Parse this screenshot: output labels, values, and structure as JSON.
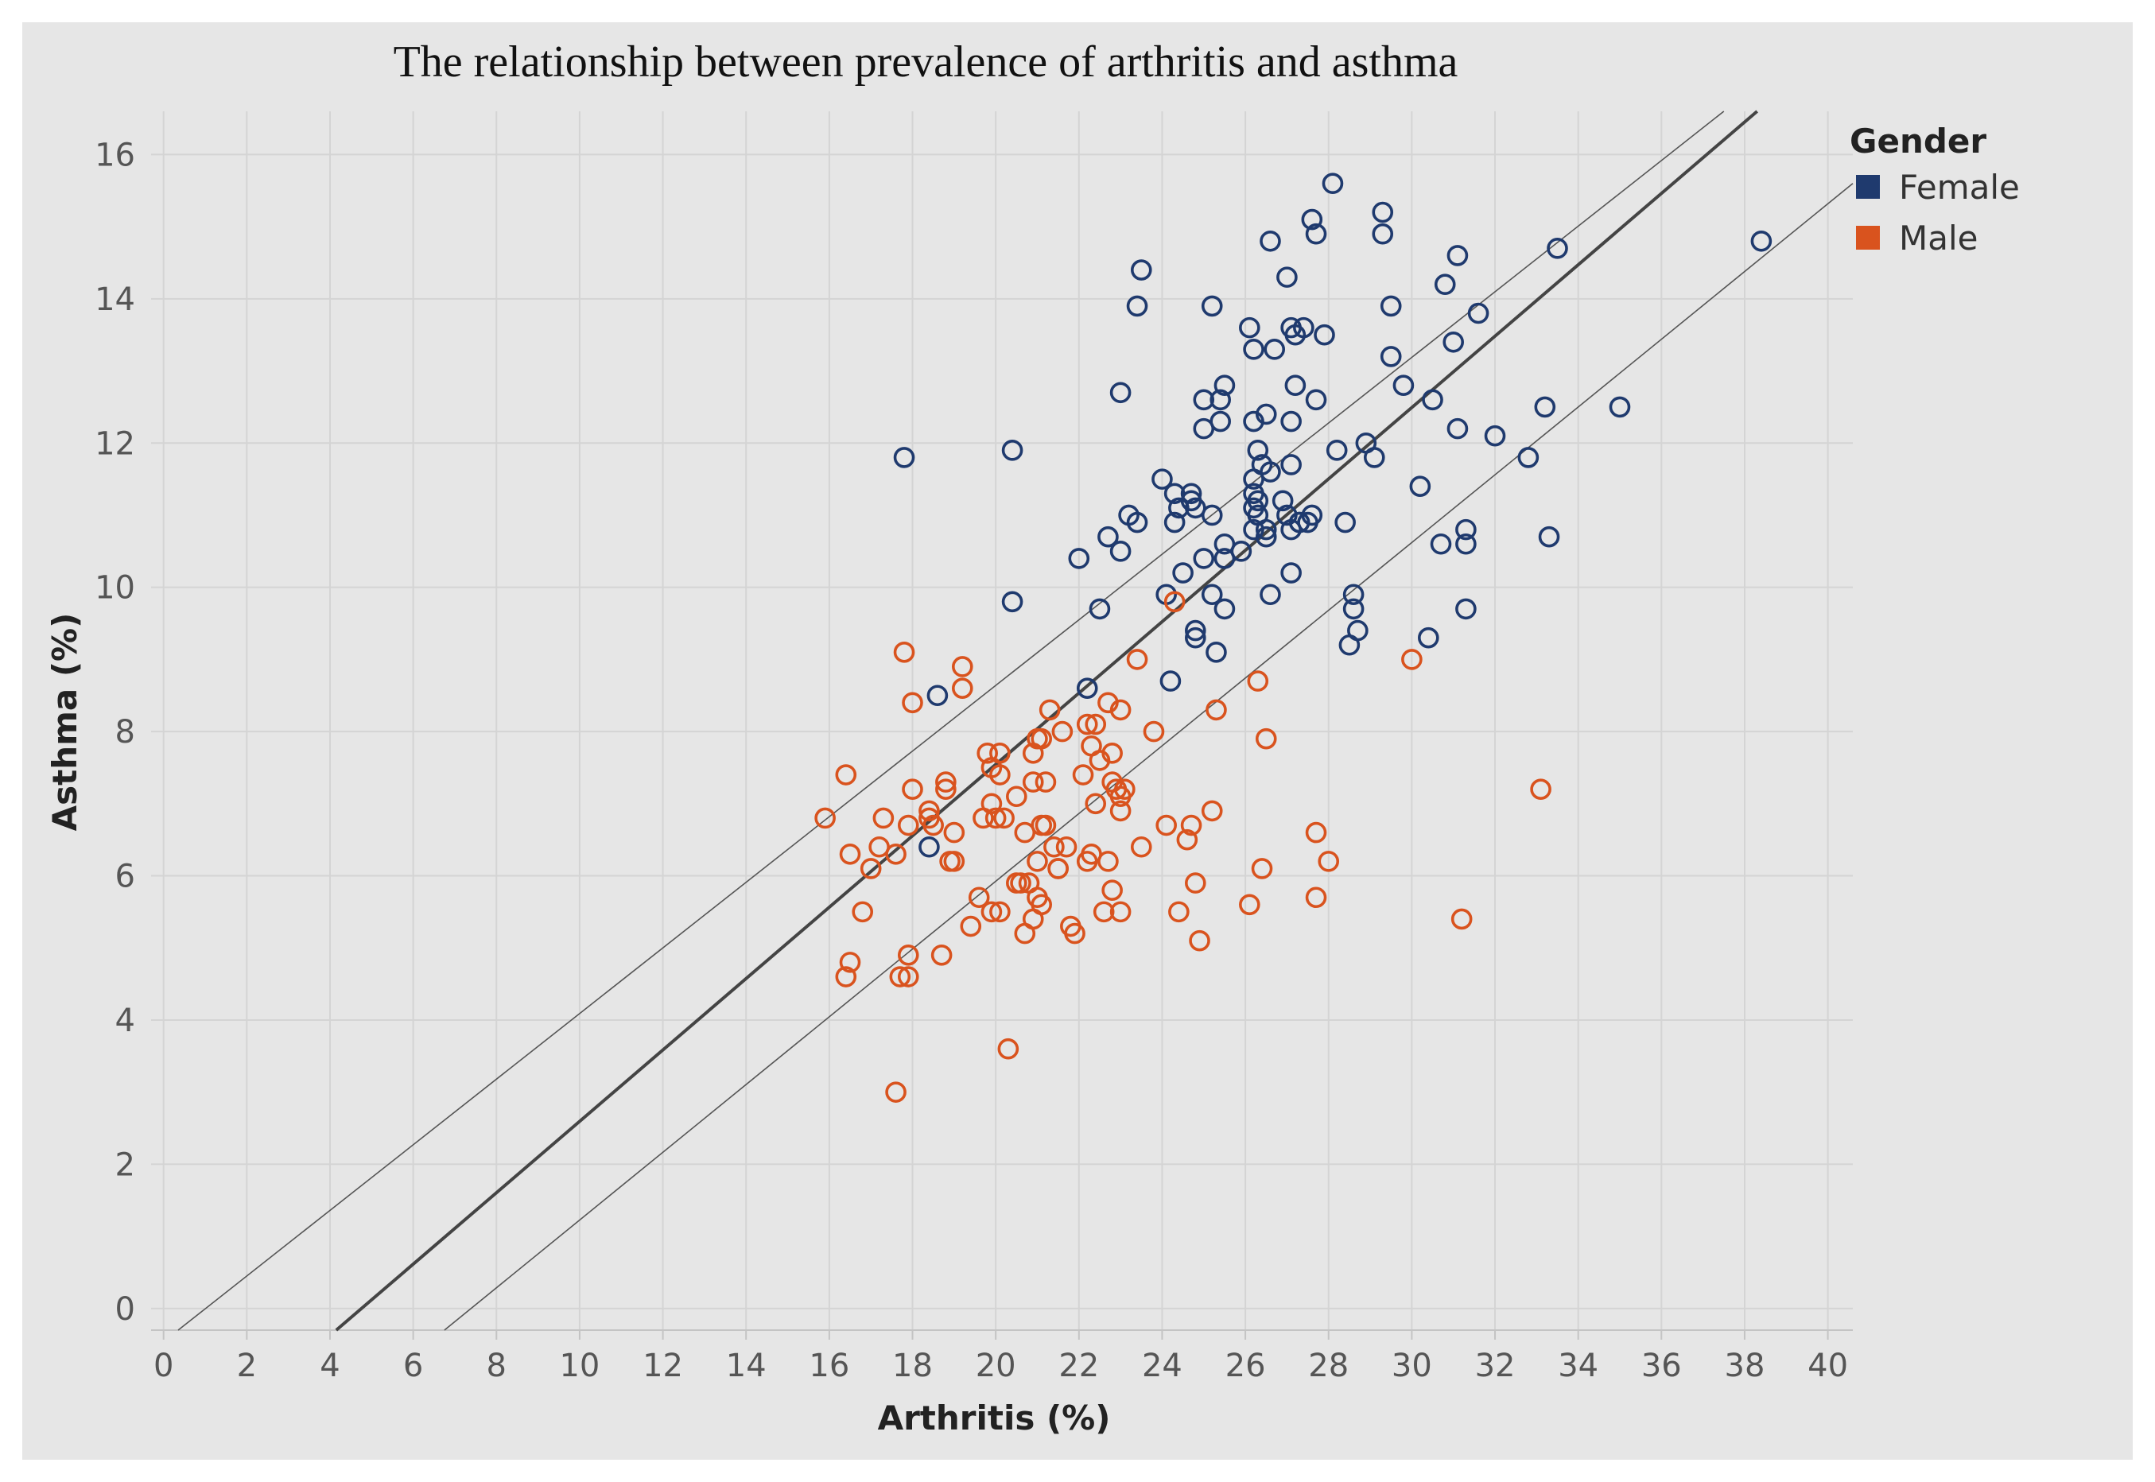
{
  "chart_data": {
    "type": "scatter",
    "title": "The relationship between prevalence of arthritis and asthma",
    "xlabel": "Arthritis (%)",
    "ylabel": "Asthma (%)",
    "xlim": [
      -0.3,
      40.6
    ],
    "ylim": [
      -0.3,
      16.6
    ],
    "x_ticks": [
      0,
      2,
      4,
      6,
      8,
      10,
      12,
      14,
      16,
      18,
      20,
      22,
      24,
      26,
      28,
      30,
      32,
      34,
      36,
      38,
      40
    ],
    "y_ticks": [
      0,
      2,
      4,
      6,
      8,
      10,
      12,
      14,
      16
    ],
    "grid": true,
    "legend": {
      "title": "Gender",
      "position": "top-right",
      "entries": [
        {
          "label": "Female",
          "color": "#1f3a6e"
        },
        {
          "label": "Male",
          "color": "#d9531e"
        }
      ]
    },
    "trend_line": {
      "name": "Trend",
      "x": [
        4.15,
        38.3
      ],
      "y": [
        -0.3,
        16.6
      ],
      "color": "#444444"
    },
    "confidence_bands": [
      {
        "name": "Upper band",
        "x": [
          0.35,
          37.5
        ],
        "y": [
          -0.3,
          16.6
        ],
        "color": "#555555"
      },
      {
        "name": "Lower band",
        "x": [
          6.75,
          40.6
        ],
        "y": [
          -0.3,
          15.6
        ],
        "color": "#555555"
      }
    ],
    "series": [
      {
        "name": "Female",
        "color": "#1f3a6e",
        "points": [
          [
            17.8,
            11.8
          ],
          [
            18.6,
            8.5
          ],
          [
            18.4,
            6.4
          ],
          [
            20.4,
            11.9
          ],
          [
            20.4,
            9.8
          ],
          [
            22.0,
            10.4
          ],
          [
            22.2,
            8.6
          ],
          [
            22.5,
            9.7
          ],
          [
            22.7,
            10.7
          ],
          [
            23.0,
            10.5
          ],
          [
            23.0,
            12.7
          ],
          [
            23.2,
            11.0
          ],
          [
            23.4,
            10.9
          ],
          [
            23.5,
            14.4
          ],
          [
            23.4,
            13.9
          ],
          [
            24.0,
            11.5
          ],
          [
            24.1,
            9.9
          ],
          [
            24.2,
            8.7
          ],
          [
            24.3,
            10.9
          ],
          [
            24.3,
            11.3
          ],
          [
            24.4,
            11.1
          ],
          [
            24.5,
            10.2
          ],
          [
            24.7,
            11.3
          ],
          [
            24.7,
            11.2
          ],
          [
            24.8,
            11.1
          ],
          [
            24.8,
            9.4
          ],
          [
            24.8,
            9.3
          ],
          [
            25.0,
            12.6
          ],
          [
            25.0,
            12.2
          ],
          [
            25.0,
            10.4
          ],
          [
            25.2,
            13.9
          ],
          [
            25.2,
            11.0
          ],
          [
            25.2,
            9.9
          ],
          [
            25.3,
            9.1
          ],
          [
            25.4,
            12.6
          ],
          [
            25.4,
            12.3
          ],
          [
            25.5,
            12.8
          ],
          [
            25.5,
            10.6
          ],
          [
            25.5,
            10.4
          ],
          [
            25.5,
            9.7
          ],
          [
            25.9,
            10.5
          ],
          [
            26.1,
            13.6
          ],
          [
            26.2,
            13.3
          ],
          [
            26.2,
            12.3
          ],
          [
            26.2,
            11.5
          ],
          [
            26.2,
            11.3
          ],
          [
            26.2,
            11.1
          ],
          [
            26.2,
            10.8
          ],
          [
            26.3,
            11.9
          ],
          [
            26.3,
            11.2
          ],
          [
            26.3,
            11.0
          ],
          [
            26.4,
            11.7
          ],
          [
            26.5,
            12.4
          ],
          [
            26.5,
            10.8
          ],
          [
            26.5,
            10.7
          ],
          [
            26.6,
            14.8
          ],
          [
            26.6,
            11.6
          ],
          [
            26.6,
            9.9
          ],
          [
            26.7,
            13.3
          ],
          [
            26.9,
            11.2
          ],
          [
            27.0,
            14.3
          ],
          [
            27.0,
            11.0
          ],
          [
            27.1,
            13.6
          ],
          [
            27.1,
            12.3
          ],
          [
            27.1,
            11.7
          ],
          [
            27.1,
            10.8
          ],
          [
            27.1,
            10.2
          ],
          [
            27.2,
            13.5
          ],
          [
            27.2,
            12.8
          ],
          [
            27.3,
            10.9
          ],
          [
            27.3,
            10.9
          ],
          [
            27.4,
            13.6
          ],
          [
            27.5,
            10.9
          ],
          [
            27.6,
            15.1
          ],
          [
            27.6,
            11.0
          ],
          [
            27.7,
            14.9
          ],
          [
            27.7,
            12.6
          ],
          [
            27.9,
            13.5
          ],
          [
            28.1,
            15.6
          ],
          [
            28.2,
            11.9
          ],
          [
            28.4,
            10.9
          ],
          [
            28.5,
            9.2
          ],
          [
            28.6,
            9.9
          ],
          [
            28.6,
            9.7
          ],
          [
            28.7,
            9.4
          ],
          [
            28.9,
            12.0
          ],
          [
            29.1,
            11.8
          ],
          [
            29.3,
            15.2
          ],
          [
            29.3,
            14.9
          ],
          [
            29.5,
            13.9
          ],
          [
            29.5,
            13.2
          ],
          [
            29.8,
            12.8
          ],
          [
            30.2,
            11.4
          ],
          [
            30.4,
            9.3
          ],
          [
            30.5,
            12.6
          ],
          [
            30.7,
            10.6
          ],
          [
            30.8,
            14.2
          ],
          [
            31.0,
            13.4
          ],
          [
            31.1,
            14.6
          ],
          [
            31.1,
            12.2
          ],
          [
            31.3,
            10.8
          ],
          [
            31.3,
            10.6
          ],
          [
            31.3,
            9.7
          ],
          [
            31.6,
            13.8
          ],
          [
            32.0,
            12.1
          ],
          [
            32.8,
            11.8
          ],
          [
            33.2,
            12.5
          ],
          [
            33.3,
            10.7
          ],
          [
            33.5,
            14.7
          ],
          [
            35.0,
            12.5
          ],
          [
            38.4,
            14.8
          ]
        ]
      },
      {
        "name": "Male",
        "color": "#d9531e",
        "points": [
          [
            15.9,
            6.8
          ],
          [
            16.4,
            7.4
          ],
          [
            16.4,
            4.6
          ],
          [
            16.5,
            6.3
          ],
          [
            16.5,
            4.8
          ],
          [
            16.8,
            5.5
          ],
          [
            17.0,
            6.1
          ],
          [
            17.2,
            6.4
          ],
          [
            17.3,
            6.8
          ],
          [
            17.6,
            6.3
          ],
          [
            17.6,
            3.0
          ],
          [
            17.7,
            4.6
          ],
          [
            17.8,
            9.1
          ],
          [
            17.9,
            6.7
          ],
          [
            17.9,
            4.9
          ],
          [
            17.9,
            4.6
          ],
          [
            18.0,
            8.4
          ],
          [
            18.0,
            7.2
          ],
          [
            18.4,
            6.8
          ],
          [
            18.4,
            6.9
          ],
          [
            18.5,
            6.7
          ],
          [
            18.7,
            4.9
          ],
          [
            18.8,
            7.3
          ],
          [
            18.8,
            7.2
          ],
          [
            18.9,
            6.2
          ],
          [
            19.0,
            6.6
          ],
          [
            19.0,
            6.2
          ],
          [
            19.2,
            8.9
          ],
          [
            19.2,
            8.6
          ],
          [
            19.4,
            5.3
          ],
          [
            19.6,
            5.7
          ],
          [
            19.7,
            6.8
          ],
          [
            19.8,
            7.7
          ],
          [
            19.9,
            7.5
          ],
          [
            19.9,
            7.0
          ],
          [
            19.9,
            5.5
          ],
          [
            20.0,
            6.8
          ],
          [
            20.1,
            7.7
          ],
          [
            20.1,
            7.4
          ],
          [
            20.1,
            5.5
          ],
          [
            20.2,
            6.8
          ],
          [
            20.3,
            3.6
          ],
          [
            20.5,
            7.1
          ],
          [
            20.5,
            5.9
          ],
          [
            20.6,
            5.9
          ],
          [
            20.7,
            6.6
          ],
          [
            20.7,
            5.2
          ],
          [
            20.8,
            5.9
          ],
          [
            20.9,
            7.7
          ],
          [
            20.9,
            7.3
          ],
          [
            20.9,
            5.4
          ],
          [
            21.0,
            7.9
          ],
          [
            21.0,
            6.2
          ],
          [
            21.0,
            5.7
          ],
          [
            21.1,
            7.9
          ],
          [
            21.1,
            6.7
          ],
          [
            21.1,
            5.6
          ],
          [
            21.2,
            7.3
          ],
          [
            21.2,
            6.7
          ],
          [
            21.3,
            8.3
          ],
          [
            21.4,
            6.4
          ],
          [
            21.5,
            6.1
          ],
          [
            21.5,
            6.1
          ],
          [
            21.6,
            8.0
          ],
          [
            21.7,
            6.4
          ],
          [
            21.8,
            5.3
          ],
          [
            21.9,
            5.2
          ],
          [
            22.1,
            7.4
          ],
          [
            22.2,
            8.1
          ],
          [
            22.2,
            6.2
          ],
          [
            22.3,
            7.8
          ],
          [
            22.3,
            6.3
          ],
          [
            22.4,
            8.1
          ],
          [
            22.4,
            7.0
          ],
          [
            22.5,
            7.6
          ],
          [
            22.6,
            5.5
          ],
          [
            22.7,
            8.4
          ],
          [
            22.7,
            6.2
          ],
          [
            22.8,
            7.7
          ],
          [
            22.8,
            7.3
          ],
          [
            22.8,
            5.8
          ],
          [
            22.9,
            7.2
          ],
          [
            23.0,
            8.3
          ],
          [
            23.0,
            7.1
          ],
          [
            23.0,
            6.9
          ],
          [
            23.0,
            5.5
          ],
          [
            23.1,
            7.2
          ],
          [
            23.4,
            9.0
          ],
          [
            23.5,
            6.4
          ],
          [
            23.8,
            8.0
          ],
          [
            24.1,
            6.7
          ],
          [
            24.3,
            9.8
          ],
          [
            24.4,
            5.5
          ],
          [
            24.6,
            6.5
          ],
          [
            24.7,
            6.7
          ],
          [
            24.8,
            5.9
          ],
          [
            24.9,
            5.1
          ],
          [
            25.2,
            6.9
          ],
          [
            25.3,
            8.3
          ],
          [
            26.1,
            5.6
          ],
          [
            26.3,
            8.7
          ],
          [
            26.4,
            6.1
          ],
          [
            26.5,
            7.9
          ],
          [
            27.7,
            6.6
          ],
          [
            27.7,
            5.7
          ],
          [
            28.0,
            6.2
          ],
          [
            30.0,
            9.0
          ],
          [
            31.2,
            5.4
          ],
          [
            33.1,
            7.2
          ]
        ]
      }
    ]
  }
}
